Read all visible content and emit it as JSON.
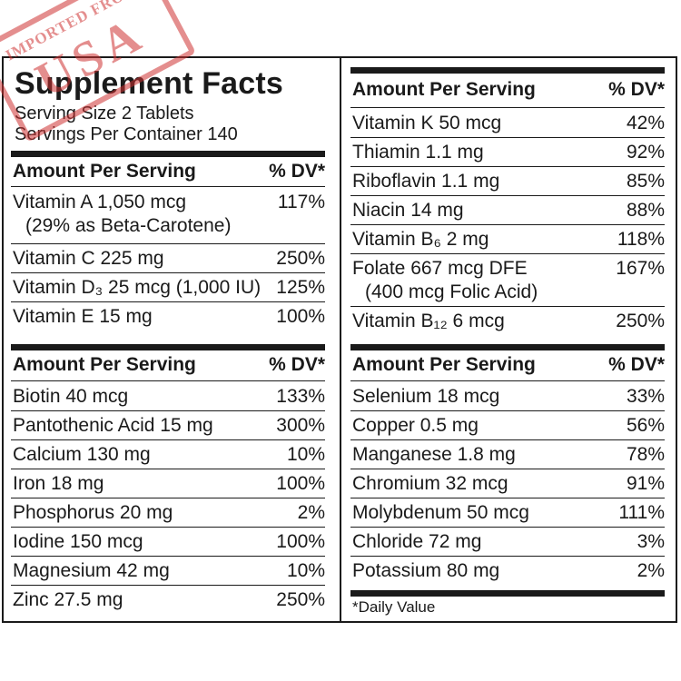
{
  "stamp": {
    "top_text": "IMPORTED FROM",
    "big_text": "USA"
  },
  "title": "Supplement Facts",
  "serving_size": "Serving Size 2 Tablets",
  "servings_per_container": "Servings Per Container 140",
  "header_left": "Amount Per Serving",
  "header_right": "% DV*",
  "section1": [
    {
      "name": "Vitamin A 1,050 mcg",
      "sub": "(29% as Beta-Carotene)",
      "dv": "117%"
    },
    {
      "name": "Vitamin C 225 mg",
      "dv": "250%"
    },
    {
      "name": "Vitamin D₃ 25 mcg (1,000 IU)",
      "dv": "125%"
    },
    {
      "name": "Vitamin E 15 mg",
      "dv": "100%"
    }
  ],
  "section2": [
    {
      "name": "Biotin 40 mcg",
      "dv": "133%"
    },
    {
      "name": "Pantothenic Acid 15 mg",
      "dv": "300%"
    },
    {
      "name": "Calcium 130 mg",
      "dv": "10%"
    },
    {
      "name": "Iron 18 mg",
      "dv": "100%"
    },
    {
      "name": "Phosphorus 20 mg",
      "dv": "2%"
    },
    {
      "name": "Iodine 150 mcg",
      "dv": "100%"
    },
    {
      "name": "Magnesium 42 mg",
      "dv": "10%"
    },
    {
      "name": "Zinc 27.5 mg",
      "dv": "250%"
    }
  ],
  "section3": [
    {
      "name": "Vitamin K 50 mcg",
      "dv": "42%"
    },
    {
      "name": "Thiamin 1.1 mg",
      "dv": "92%"
    },
    {
      "name": "Riboflavin 1.1 mg",
      "dv": "85%"
    },
    {
      "name": "Niacin 14 mg",
      "dv": "88%"
    },
    {
      "name": "Vitamin B₆ 2 mg",
      "dv": "118%"
    },
    {
      "name": "Folate 667 mcg DFE",
      "sub": "(400 mcg Folic Acid)",
      "dv": "167%"
    },
    {
      "name": "Vitamin B₁₂ 6 mcg",
      "dv": "250%"
    }
  ],
  "section4": [
    {
      "name": "Selenium 18 mcg",
      "dv": "33%"
    },
    {
      "name": "Copper 0.5 mg",
      "dv": "56%"
    },
    {
      "name": "Manganese 1.8 mg",
      "dv": "78%"
    },
    {
      "name": "Chromium 32 mcg",
      "dv": "91%"
    },
    {
      "name": "Molybdenum 50 mcg",
      "dv": "111%"
    },
    {
      "name": "Chloride 72 mg",
      "dv": "3%"
    },
    {
      "name": "Potassium 80 mg",
      "dv": "2%"
    }
  ],
  "footnote": "*Daily Value"
}
